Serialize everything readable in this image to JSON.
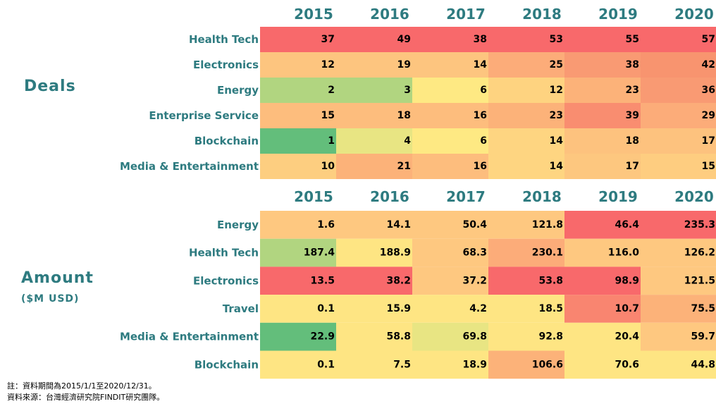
{
  "chart_data": [
    {
      "type": "heatmap",
      "title": "Deals",
      "subtitle": "",
      "columns": [
        "2015",
        "2016",
        "2017",
        "2018",
        "2019",
        "2020"
      ],
      "rows": [
        "Health Tech",
        "Electronics",
        "Energy",
        "Enterprise Service",
        "Blockchain",
        "Media & Entertainment"
      ],
      "values": [
        [
          37,
          49,
          38,
          53,
          55,
          57
        ],
        [
          12,
          19,
          14,
          25,
          38,
          42
        ],
        [
          2,
          3,
          6,
          12,
          23,
          36
        ],
        [
          15,
          18,
          16,
          23,
          39,
          29
        ],
        [
          1,
          4,
          6,
          14,
          18,
          17
        ],
        [
          10,
          21,
          16,
          14,
          17,
          15
        ]
      ],
      "labels": [
        [
          "37",
          "49",
          "38",
          "53",
          "55",
          "57"
        ],
        [
          "12",
          "19",
          "14",
          "25",
          "38",
          "42"
        ],
        [
          "2",
          "3",
          "6",
          "12",
          "23",
          "36"
        ],
        [
          "15",
          "18",
          "16",
          "23",
          "39",
          "29"
        ],
        [
          "1",
          "4",
          "6",
          "14",
          "18",
          "17"
        ],
        [
          "10",
          "21",
          "16",
          "14",
          "17",
          "15"
        ]
      ],
      "color_scale": "per column, green (low) - yellow - red (high)"
    },
    {
      "type": "heatmap",
      "title": "Amount",
      "subtitle": "($M USD)",
      "columns": [
        "2015",
        "2016",
        "2017",
        "2018",
        "2019",
        "2020"
      ],
      "rows": [
        "Energy",
        "Health Tech",
        "Electronics",
        "Travel",
        "Media & Entertainment",
        "Blockchain"
      ],
      "values": [
        [
          1.6,
          14.1,
          50.4,
          121.8,
          46.4,
          235.3
        ],
        [
          187.4,
          188.9,
          68.3,
          230.1,
          116.0,
          126.2
        ],
        [
          13.5,
          38.2,
          37.2,
          53.8,
          98.9,
          121.5
        ],
        [
          0.1,
          15.9,
          4.2,
          18.5,
          10.7,
          75.5
        ],
        [
          22.9,
          58.8,
          69.8,
          92.8,
          20.4,
          59.7
        ],
        [
          0.1,
          7.5,
          18.9,
          106.6,
          70.6,
          44.8
        ]
      ],
      "labels": [
        [
          "1.6",
          "14.1",
          "50.4",
          "121.8",
          "46.4",
          "235.3"
        ],
        [
          "187.4",
          "188.9",
          "68.3",
          "230.1",
          "116.0",
          "126.2"
        ],
        [
          "13.5",
          "38.2",
          "37.2",
          "53.8",
          "98.9",
          "121.5"
        ],
        [
          "0.1",
          "15.9",
          "4.2",
          "18.5",
          "10.7",
          "75.5"
        ],
        [
          "22.9",
          "58.8",
          "69.8",
          "92.8",
          "20.4",
          "59.7"
        ],
        [
          "0.1",
          "7.5",
          "18.9",
          "106.6",
          "70.6",
          "44.8"
        ]
      ],
      "color_scale": "ranked colouring as shown"
    }
  ],
  "cell_colors": {
    "deals": [
      [
        "#f8696b",
        "#f8696b",
        "#f8696b",
        "#f8696b",
        "#f8696b",
        "#f8696b"
      ],
      [
        "#fdc57f",
        "#fdc57f",
        "#fdc57f",
        "#fcac79",
        "#f99a73",
        "#f8946f"
      ],
      [
        "#b1d580",
        "#b1d580",
        "#fee983",
        "#fed380",
        "#fcb279",
        "#f99a73"
      ],
      [
        "#fdbd7d",
        "#fdbd7d",
        "#fdbd7d",
        "#fcb279",
        "#f98d70",
        "#fcac79"
      ],
      [
        "#63be7b",
        "#e8e583",
        "#fee983",
        "#fed581",
        "#fdc27e",
        "#fdc27e"
      ],
      [
        "#fdce80",
        "#fcb279",
        "#fdbd7d",
        "#fed581",
        "#fdc77f",
        "#fecd80"
      ]
    ],
    "amount": [
      [
        "#fec880",
        "#fec880",
        "#fec880",
        "#fec880",
        "#f8696b",
        "#f8696b"
      ],
      [
        "#b1d580",
        "#fee583",
        "#fec880",
        "#fcac79",
        "#fec880",
        "#fec880"
      ],
      [
        "#f8696b",
        "#f8696b",
        "#fec880",
        "#f8696b",
        "#f8696b",
        "#fec880"
      ],
      [
        "#fee583",
        "#fee583",
        "#fee583",
        "#fee583",
        "#f98570",
        "#fcb279"
      ],
      [
        "#63be7b",
        "#fee583",
        "#e8e583",
        "#fee583",
        "#fee583",
        "#fec880"
      ],
      [
        "#fee583",
        "#fee583",
        "#fee583",
        "#fcb279",
        "#fee583",
        "#fee583"
      ]
    ]
  },
  "accent_color": "#2e7b80",
  "titles": {
    "deals": "Deals",
    "amount": "Amount",
    "amount_unit": "($M USD)"
  },
  "notes": {
    "period": "註：資料期間為2015/1/1至2020/12/31。",
    "source": "資料來源：台灣經濟研究院FINDIT研究團隊。"
  }
}
